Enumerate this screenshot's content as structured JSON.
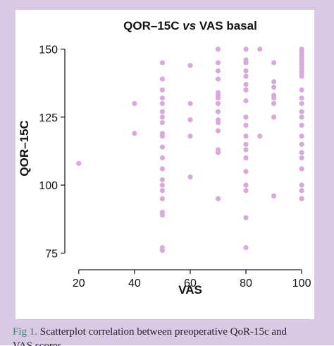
{
  "caption": {
    "label": "Fig 1.",
    "text": " Scatterplot correlation between preoperative QoR-15c and",
    "text_line2": "VAS scores."
  },
  "colors": {
    "frame": "#d9c9e4",
    "point": "#d9a9dc",
    "axis": "#222222",
    "caption_label": "#3a8a6a"
  },
  "chart_data": {
    "type": "scatter",
    "title_prefix": "QOR–15C ",
    "title_italic": "vs",
    "title_suffix": " VAS basal",
    "xlabel": "VAS",
    "ylabel": "QOR–15C",
    "xlim": [
      15,
      103
    ],
    "ylim": [
      72,
      153
    ],
    "xticks": [
      20,
      40,
      60,
      80,
      100
    ],
    "yticks": [
      75,
      100,
      125,
      150
    ],
    "grid": false,
    "legend": "none",
    "points": [
      {
        "x": 20,
        "y": 108
      },
      {
        "x": 40,
        "y": 130
      },
      {
        "x": 40,
        "y": 119
      },
      {
        "x": 50,
        "y": 145
      },
      {
        "x": 50,
        "y": 139
      },
      {
        "x": 50,
        "y": 135
      },
      {
        "x": 50,
        "y": 132
      },
      {
        "x": 50,
        "y": 130
      },
      {
        "x": 50,
        "y": 127
      },
      {
        "x": 50,
        "y": 125
      },
      {
        "x": 50,
        "y": 123
      },
      {
        "x": 50,
        "y": 119
      },
      {
        "x": 50,
        "y": 118
      },
      {
        "x": 50,
        "y": 114
      },
      {
        "x": 50,
        "y": 110
      },
      {
        "x": 50,
        "y": 106
      },
      {
        "x": 50,
        "y": 102
      },
      {
        "x": 50,
        "y": 100
      },
      {
        "x": 50,
        "y": 98
      },
      {
        "x": 50,
        "y": 95
      },
      {
        "x": 50,
        "y": 90
      },
      {
        "x": 50,
        "y": 89
      },
      {
        "x": 50,
        "y": 77
      },
      {
        "x": 50,
        "y": 76
      },
      {
        "x": 60,
        "y": 144
      },
      {
        "x": 60,
        "y": 130
      },
      {
        "x": 60,
        "y": 124
      },
      {
        "x": 60,
        "y": 118
      },
      {
        "x": 60,
        "y": 103
      },
      {
        "x": 70,
        "y": 150
      },
      {
        "x": 70,
        "y": 145
      },
      {
        "x": 70,
        "y": 142
      },
      {
        "x": 70,
        "y": 139
      },
      {
        "x": 70,
        "y": 134
      },
      {
        "x": 70,
        "y": 133
      },
      {
        "x": 70,
        "y": 132
      },
      {
        "x": 70,
        "y": 130
      },
      {
        "x": 70,
        "y": 127
      },
      {
        "x": 70,
        "y": 124
      },
      {
        "x": 70,
        "y": 123
      },
      {
        "x": 70,
        "y": 120
      },
      {
        "x": 70,
        "y": 113
      },
      {
        "x": 70,
        "y": 112
      },
      {
        "x": 70,
        "y": 95
      },
      {
        "x": 80,
        "y": 150
      },
      {
        "x": 80,
        "y": 146
      },
      {
        "x": 80,
        "y": 145
      },
      {
        "x": 80,
        "y": 142
      },
      {
        "x": 80,
        "y": 140
      },
      {
        "x": 80,
        "y": 137
      },
      {
        "x": 80,
        "y": 135
      },
      {
        "x": 80,
        "y": 131
      },
      {
        "x": 80,
        "y": 125
      },
      {
        "x": 80,
        "y": 122
      },
      {
        "x": 80,
        "y": 118
      },
      {
        "x": 80,
        "y": 115
      },
      {
        "x": 80,
        "y": 113
      },
      {
        "x": 80,
        "y": 110
      },
      {
        "x": 80,
        "y": 105
      },
      {
        "x": 80,
        "y": 100
      },
      {
        "x": 80,
        "y": 98
      },
      {
        "x": 80,
        "y": 88
      },
      {
        "x": 80,
        "y": 77
      },
      {
        "x": 85,
        "y": 150
      },
      {
        "x": 85,
        "y": 118
      },
      {
        "x": 90,
        "y": 145
      },
      {
        "x": 90,
        "y": 138
      },
      {
        "x": 90,
        "y": 136
      },
      {
        "x": 90,
        "y": 133
      },
      {
        "x": 90,
        "y": 132
      },
      {
        "x": 90,
        "y": 130
      },
      {
        "x": 90,
        "y": 125
      },
      {
        "x": 90,
        "y": 96
      },
      {
        "x": 100,
        "y": 150
      },
      {
        "x": 100,
        "y": 149
      },
      {
        "x": 100,
        "y": 148
      },
      {
        "x": 100,
        "y": 147
      },
      {
        "x": 100,
        "y": 146
      },
      {
        "x": 100,
        "y": 145
      },
      {
        "x": 100,
        "y": 144
      },
      {
        "x": 100,
        "y": 143
      },
      {
        "x": 100,
        "y": 142
      },
      {
        "x": 100,
        "y": 141
      },
      {
        "x": 100,
        "y": 140
      },
      {
        "x": 100,
        "y": 135
      },
      {
        "x": 100,
        "y": 132
      },
      {
        "x": 100,
        "y": 130
      },
      {
        "x": 100,
        "y": 127
      },
      {
        "x": 100,
        "y": 125
      },
      {
        "x": 100,
        "y": 122
      },
      {
        "x": 100,
        "y": 118
      },
      {
        "x": 100,
        "y": 115
      },
      {
        "x": 100,
        "y": 112
      },
      {
        "x": 100,
        "y": 110
      },
      {
        "x": 100,
        "y": 106
      },
      {
        "x": 100,
        "y": 100
      },
      {
        "x": 100,
        "y": 98
      },
      {
        "x": 100,
        "y": 95
      }
    ]
  }
}
